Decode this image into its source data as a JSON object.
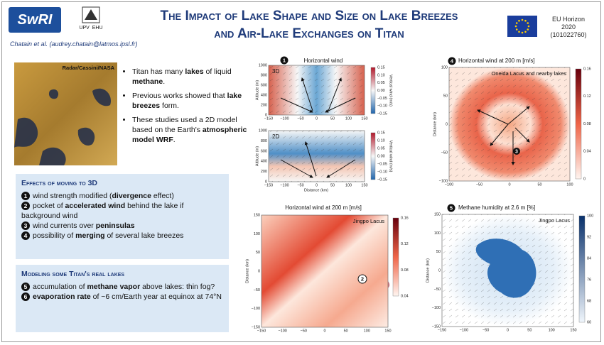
{
  "header": {
    "org_logo": "SwRI",
    "univ_logo": [
      "UPV",
      "EHU"
    ],
    "title": [
      "The Impact of Lake Shape and Size on Lake Breezes",
      "and Air-Lake Exchanges on Titan"
    ],
    "authors": "Chatain et al. (audrey.chatain@latmos.ipsl.fr)",
    "funding": [
      "EU Horizon",
      "2020",
      "(101022760)"
    ]
  },
  "intro": {
    "image_credit": "Radar/Cassini/NASA",
    "bullets": [
      [
        {
          "t": "Titan has many "
        },
        {
          "t": "lakes",
          "b": true
        },
        {
          "t": " of liquid "
        },
        {
          "t": "methane",
          "b": true
        },
        {
          "t": "."
        }
      ],
      [
        {
          "t": "Previous works showed that "
        },
        {
          "t": "lake breezes",
          "b": true
        },
        {
          "t": " form."
        }
      ],
      [
        {
          "t": "These studies used a 2D model based on the Earth's "
        },
        {
          "t": "atmospheric model WRF",
          "b": true
        },
        {
          "t": "."
        }
      ]
    ]
  },
  "effects": {
    "heading": "Effects of moving to 3D",
    "items": [
      {
        "num": "1",
        "segs": [
          {
            "t": "wind strength modified ("
          },
          {
            "t": "divergence",
            "b": true
          },
          {
            "t": " effect)"
          }
        ]
      },
      {
        "num": "2",
        "segs": [
          {
            "t": "pocket of "
          },
          {
            "t": "accelerated wind",
            "b": true
          },
          {
            "t": " behind the lake if background wind"
          }
        ]
      },
      {
        "num": "3",
        "segs": [
          {
            "t": "wind currents over "
          },
          {
            "t": "peninsulas",
            "b": true
          }
        ]
      },
      {
        "num": "4",
        "segs": [
          {
            "t": "possibility of "
          },
          {
            "t": "merging",
            "b": true
          },
          {
            "t": " of several lake breezes"
          }
        ]
      }
    ]
  },
  "real_lakes": {
    "heading": "Modeling some Titan's real lakes",
    "items": [
      {
        "num": "5",
        "segs": [
          {
            "t": "accumulation of "
          },
          {
            "t": "methane vapor",
            "b": true
          },
          {
            "t": " above lakes: thin fog?"
          }
        ]
      },
      {
        "num": "6",
        "segs": [
          {
            "t": "evaporation rate",
            "b": true
          },
          {
            "t": " of ~6 cm/Earth year at equinox at 74°N"
          }
        ]
      }
    ]
  },
  "panel_1": {
    "num": "1",
    "title": "Horizontal wind",
    "xlabel": "Distance (km)",
    "subplots": [
      {
        "label": "3D",
        "ylabel": "Altitude (m)",
        "yticks": [
          "1000",
          "800",
          "600",
          "400",
          "200",
          "0"
        ],
        "xticks": [
          "−150",
          "−100",
          "−50",
          "0",
          "50",
          "100",
          "150"
        ],
        "cbar": [
          "0.15",
          "0.10",
          "0.05",
          "0.00",
          "−0.05",
          "−0.10",
          "−0.15"
        ],
        "cbar_label": "Vertical wind (m/s)"
      },
      {
        "label": "2D",
        "ylabel": "Altitude (m)",
        "yticks": [
          "1000",
          "800",
          "600",
          "400",
          "200",
          "0"
        ],
        "xticks": [
          "−150",
          "−100",
          "−50",
          "0",
          "50",
          "100",
          "150"
        ],
        "cbar": [
          "0.15",
          "0.10",
          "0.05",
          "0.00",
          "−0.05",
          "−0.10",
          "−0.15"
        ],
        "cbar_label": "Vertical wind (m/s)"
      }
    ]
  },
  "panel_4": {
    "num": "4",
    "title": "Horizontal wind at 200 m [m/s]",
    "inset": "Oneida Lacus and nearby lakes",
    "marker": "3",
    "ylabel": "Distance (km)",
    "yticks": [
      "100",
      "50",
      "0",
      "−50",
      "−100"
    ],
    "xticks": [
      "−100",
      "−50",
      "0",
      "50",
      "100"
    ],
    "cbar": [
      "0.16",
      "0.12",
      "0.08",
      "0.04",
      "0"
    ]
  },
  "panel_2": {
    "title": "Horizontal wind at 200 m [m/s]",
    "inset": "Jingpo Lacus",
    "marker": "2",
    "ylabel": "Distance (km)",
    "yticks": [
      "150",
      "100",
      "50",
      "0",
      "−50",
      "−100",
      "−150"
    ],
    "xticks": [
      "−150",
      "−100",
      "−50",
      "0",
      "50",
      "100",
      "150"
    ],
    "cbar": [
      "0.16",
      "0.12",
      "0.08",
      "0.04"
    ]
  },
  "panel_5": {
    "num": "5",
    "title": "Methane humidity at 2.6 m [%]",
    "inset": "Jingpo Lacus",
    "ylabel": "Distance (km)",
    "yticks": [
      "150",
      "100",
      "50",
      "0",
      "−50",
      "−100",
      "−150"
    ],
    "xticks": [
      "−150",
      "−100",
      "−50",
      "0",
      "50",
      "100",
      "150"
    ],
    "cbar": [
      "100",
      "92",
      "84",
      "76",
      "68",
      "60"
    ]
  }
}
